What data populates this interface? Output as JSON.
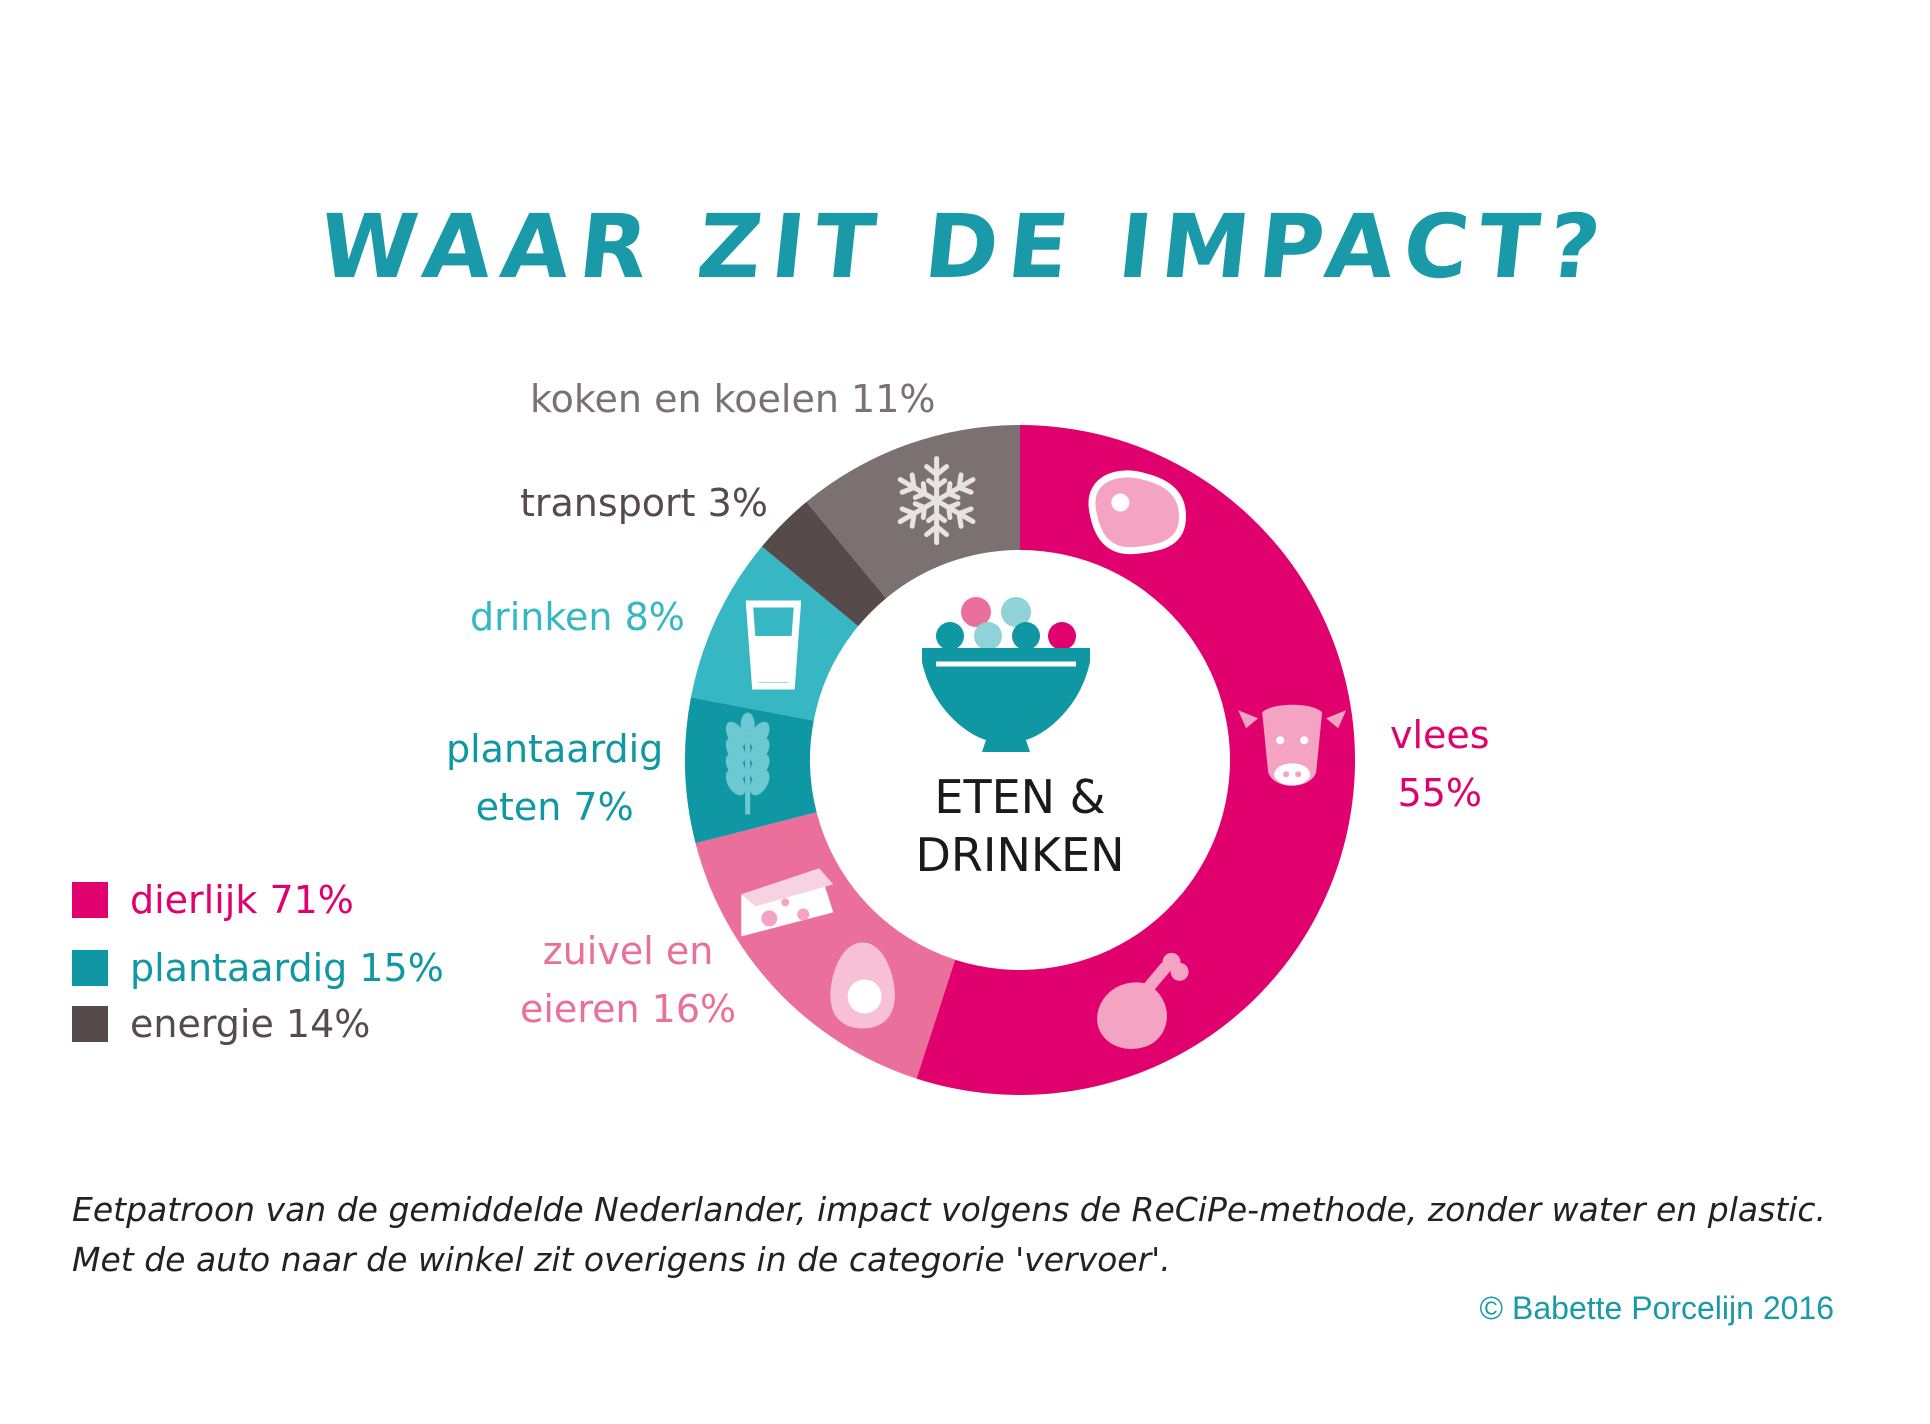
{
  "title": "WAAR ZIT DE IMPACT?",
  "colors": {
    "title": "#1a9aa8",
    "vlees": "#e0006e",
    "zuivel": "#ea6f9b",
    "plantaardig": "#0f97a3",
    "drinken": "#37b7c4",
    "transport": "#564a4b",
    "koken": "#7b7172",
    "icon_light": "#f4a4c2"
  },
  "chart_data": {
    "type": "pie",
    "donut": true,
    "center_label_line1": "ETEN &",
    "center_label_line2": "DRINKEN",
    "segments": [
      {
        "key": "vlees",
        "label_line1": "vlees",
        "label_line2": "55%",
        "value": 55,
        "icons": [
          "steak-icon",
          "cow-icon",
          "chicken-leg-icon"
        ]
      },
      {
        "key": "zuivel",
        "label_line1": "zuivel en",
        "label_line2": "eieren 16%",
        "value": 16,
        "icons": [
          "cheese-icon",
          "egg-icon"
        ]
      },
      {
        "key": "plantaardig",
        "label_line1": "plantaardig",
        "label_line2": "eten 7%",
        "value": 7,
        "icons": [
          "wheat-icon"
        ]
      },
      {
        "key": "drinken",
        "label_line1": "drinken 8%",
        "value": 8,
        "icons": [
          "glass-icon"
        ]
      },
      {
        "key": "transport",
        "label_line1": "transport 3%",
        "value": 3,
        "icons": []
      },
      {
        "key": "koken",
        "label_line1": "koken en koelen 11%",
        "value": 11,
        "icons": [
          "snowflake-icon"
        ]
      }
    ],
    "legend": [
      {
        "label": "dierlijk 71%",
        "color": "#e0006e"
      },
      {
        "label": "plantaardig 15%",
        "color": "#0f97a3"
      },
      {
        "label": "energie 14%",
        "color": "#564a4b"
      }
    ]
  },
  "caption_line1": "Eetpatroon van de gemiddelde Nederlander, impact volgens de ReCiPe-methode, zonder water en plastic.",
  "caption_line2": "Met de auto naar de winkel zit overigens in de categorie 'vervoer'.",
  "credit": "© Babette Porcelijn 2016"
}
